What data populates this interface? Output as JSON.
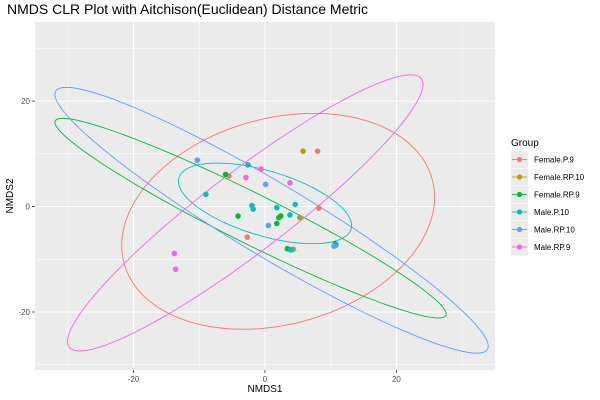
{
  "chart_data": {
    "type": "scatter",
    "title": "NMDS CLR Plot with Aitchison(Euclidean) Distance Metric",
    "xlabel": "NMDS1",
    "ylabel": "NMDS2",
    "xlim": [
      -35,
      35
    ],
    "ylim": [
      -31,
      35
    ],
    "x_ticks": [
      -20,
      0,
      20
    ],
    "y_ticks": [
      -20,
      0,
      20
    ],
    "x_tick_labels": [
      "-20",
      "0",
      "20"
    ],
    "y_tick_labels": [
      "-20",
      "0",
      "20"
    ],
    "grid": true,
    "legend": {
      "title": "Group",
      "placement": "right"
    },
    "series": [
      {
        "name": "Female.P.9",
        "color": "#F8766D",
        "points": [
          [
            8,
            10.5
          ],
          [
            -5.5,
            5.8
          ],
          [
            -2.7,
            -5.8
          ],
          [
            8.2,
            -0.3
          ],
          [
            4.3,
            -8.1
          ]
        ],
        "ellipse": {
          "center": [
            2,
            -2.8
          ],
          "rx": 25,
          "ry": 19,
          "angle_deg": 28
        }
      },
      {
        "name": "Female.RP.10",
        "color": "#B79F00",
        "points": [
          [
            5.8,
            10.5
          ],
          [
            5.3,
            -2.1
          ],
          [
            4.1,
            -8.2
          ]
        ],
        "ellipse": null
      },
      {
        "name": "Female.RP.9",
        "color": "#00BA38",
        "points": [
          [
            -6,
            6.1
          ],
          [
            -4.1,
            -1.8
          ],
          [
            2.1,
            -2.1
          ],
          [
            1.8,
            -3.2
          ],
          [
            2.4,
            -1.8
          ],
          [
            3.4,
            -8.0
          ],
          [
            10.7,
            -7.1
          ]
        ],
        "ellipse": {
          "center": [
            -2.2,
            -2.2
          ],
          "rx": 35,
          "ry": 4.5,
          "angle_deg": -32
        }
      },
      {
        "name": "Male.P.10",
        "color": "#00BFC4",
        "points": [
          [
            -2.6,
            7.9
          ],
          [
            -9,
            2.3
          ],
          [
            -2,
            0.2
          ],
          [
            -1.8,
            -0.5
          ],
          [
            3.8,
            -1.6
          ],
          [
            1.8,
            -0.2
          ],
          [
            4.6,
            0.4
          ],
          [
            3.9,
            -8.2
          ],
          [
            10.8,
            -7.3
          ]
        ],
        "ellipse": {
          "center": [
            0,
            0.6
          ],
          "rx": 14,
          "ry": 6,
          "angle_deg": -22
        }
      },
      {
        "name": "Male.RP.10",
        "color": "#619CFF",
        "points": [
          [
            -10.3,
            8.8
          ],
          [
            0.1,
            4.2
          ],
          [
            0.5,
            -3.6
          ],
          [
            10.5,
            -7.5
          ]
        ],
        "ellipse": {
          "center": [
            1,
            -2.6
          ],
          "rx": 41,
          "ry": 6.5,
          "angle_deg": -37
        }
      },
      {
        "name": "Male.RP.9",
        "color": "#F564E3",
        "points": [
          [
            -0.6,
            7.1
          ],
          [
            -2.9,
            5.5
          ],
          [
            3.8,
            4.5
          ],
          [
            -13.8,
            -8.9
          ],
          [
            -13.6,
            -11.9
          ]
        ],
        "ellipse": {
          "center": [
            -3,
            -1.2
          ],
          "rx": 37,
          "ry": 7,
          "angle_deg": 44
        }
      }
    ]
  }
}
